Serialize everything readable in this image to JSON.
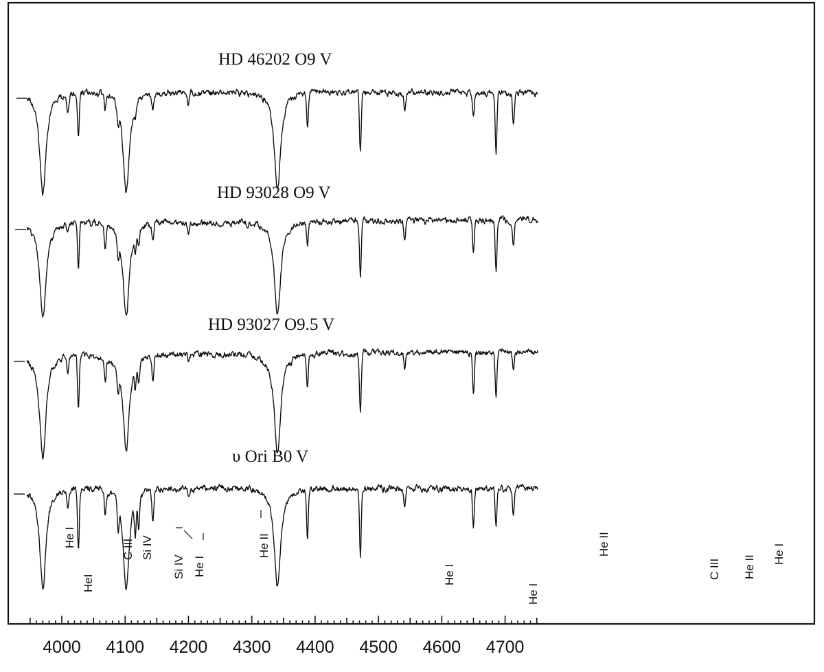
{
  "chart_data": {
    "type": "line",
    "xlabel": "",
    "ylabel": "",
    "xlim": [
      3945,
      4755
    ],
    "x_ticks": [
      4000,
      4100,
      4200,
      4300,
      4400,
      4500,
      4600,
      4700
    ],
    "x_tick_labels": [
      "4000",
      "4100",
      "4200",
      "4300",
      "4400",
      "4500",
      "4600",
      "4700"
    ],
    "grid": false,
    "series": [
      {
        "name": "HD 46202  O9 V",
        "lines": [
          [
            3970.1,
            0.91
          ],
          [
            4009.3,
            0.15
          ],
          [
            4026.2,
            0.38
          ],
          [
            4068.6,
            0.12
          ],
          [
            4088.9,
            0.15
          ],
          [
            4101.7,
            0.88
          ],
          [
            4116.1,
            0.09
          ],
          [
            4143.8,
            0.14
          ],
          [
            4199.8,
            0.12
          ],
          [
            4340.5,
            0.86
          ],
          [
            4387.9,
            0.28
          ],
          [
            4471.5,
            0.54
          ],
          [
            4541.6,
            0.17
          ],
          [
            4650.0,
            0.24
          ],
          [
            4685.7,
            0.52
          ],
          [
            4713.1,
            0.3
          ]
        ]
      },
      {
        "name": "HD 93028  O9 V",
        "lines": [
          [
            3970.1,
            0.91
          ],
          [
            4009.3,
            0.08
          ],
          [
            4026.2,
            0.46
          ],
          [
            4068.6,
            0.22
          ],
          [
            4088.9,
            0.2
          ],
          [
            4101.7,
            0.9
          ],
          [
            4116.1,
            0.18
          ],
          [
            4121.3,
            0.16
          ],
          [
            4143.8,
            0.17
          ],
          [
            4199.8,
            0.14
          ],
          [
            4340.5,
            0.88
          ],
          [
            4387.9,
            0.22
          ],
          [
            4471.5,
            0.53
          ],
          [
            4541.6,
            0.18
          ],
          [
            4650.0,
            0.32
          ],
          [
            4685.7,
            0.48
          ],
          [
            4713.1,
            0.23
          ]
        ]
      },
      {
        "name": "HD 93027  O9.5 V",
        "lines": [
          [
            3970.1,
            0.93
          ],
          [
            4009.3,
            0.15
          ],
          [
            4026.2,
            0.49
          ],
          [
            4068.6,
            0.2
          ],
          [
            4088.9,
            0.22
          ],
          [
            4101.7,
            0.89
          ],
          [
            4116.1,
            0.2
          ],
          [
            4121.3,
            0.18
          ],
          [
            4143.8,
            0.24
          ],
          [
            4199.8,
            0.06
          ],
          [
            4340.5,
            0.91
          ],
          [
            4387.9,
            0.29
          ],
          [
            4471.5,
            0.54
          ],
          [
            4541.6,
            0.15
          ],
          [
            4650.0,
            0.38
          ],
          [
            4685.7,
            0.4
          ],
          [
            4713.1,
            0.15
          ]
        ]
      },
      {
        "name": "υ Ori  B0 V",
        "lines": [
          [
            3970.1,
            0.88
          ],
          [
            4009.3,
            0.17
          ],
          [
            4026.2,
            0.54
          ],
          [
            4068.6,
            0.21
          ],
          [
            4088.9,
            0.25
          ],
          [
            4101.7,
            0.88
          ],
          [
            4116.1,
            0.3
          ],
          [
            4121.3,
            0.28
          ],
          [
            4143.8,
            0.3
          ],
          [
            4199.8,
            0.05
          ],
          [
            4340.5,
            0.88
          ],
          [
            4387.9,
            0.47
          ],
          [
            4471.5,
            0.59
          ],
          [
            4541.6,
            0.17
          ],
          [
            4650.0,
            0.35
          ],
          [
            4685.7,
            0.35
          ],
          [
            4713.1,
            0.22
          ]
        ]
      }
    ],
    "annotations": [
      {
        "text": "He I",
        "x": 4009
      },
      {
        "text": "HeI",
        "x": 4026
      },
      {
        "text": "C III",
        "x": 4069
      },
      {
        "text": "Si IV",
        "x": 4089
      },
      {
        "text": "Si IV",
        "x": 4116
      },
      {
        "text": "He I",
        "x": 4144
      },
      {
        "text": "He II",
        "x": 4200
      },
      {
        "text": "He I",
        "x": 4388
      },
      {
        "text": "He I",
        "x": 4471
      },
      {
        "text": "He II",
        "x": 4542
      },
      {
        "text": "C III",
        "x": 4650
      },
      {
        "text": "He II",
        "x": 4686
      },
      {
        "text": "He I",
        "x": 4713
      }
    ]
  }
}
